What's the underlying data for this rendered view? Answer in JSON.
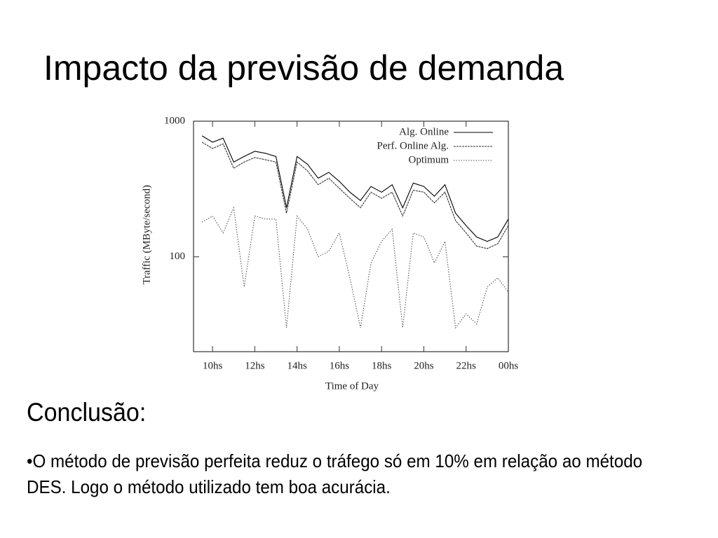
{
  "slide": {
    "title": "Impacto da previsão de demanda",
    "heading": "Conclusão:",
    "text": "•O método de previsão perfeita reduz o tráfego só em 10% em relação ao método DES. Logo o método utilizado tem boa acurácia."
  },
  "chart_data": {
    "type": "line",
    "xlabel": "Time of Day",
    "ylabel": "Traffic (MByte/second)",
    "x": [
      9.5,
      10,
      10.5,
      11,
      11.5,
      12,
      12.5,
      13,
      13.5,
      14,
      14.5,
      15,
      15.5,
      16,
      16.5,
      17,
      17.5,
      18,
      18.5,
      19,
      19.5,
      20,
      20.5,
      21,
      21.5,
      22,
      22.5,
      23,
      23.5,
      24
    ],
    "series": [
      {
        "name": "Alg. Online",
        "color": "#000000",
        "values": [
          780,
          700,
          750,
          500,
          550,
          600,
          580,
          550,
          230,
          550,
          480,
          380,
          420,
          360,
          300,
          260,
          330,
          300,
          340,
          230,
          350,
          330,
          280,
          340,
          210,
          170,
          140,
          130,
          140,
          190
        ]
      },
      {
        "name": "Perf. Online Alg.",
        "color": "#333333",
        "values": [
          700,
          630,
          680,
          450,
          500,
          540,
          520,
          500,
          210,
          500,
          430,
          340,
          380,
          320,
          270,
          230,
          300,
          270,
          300,
          200,
          310,
          300,
          250,
          300,
          185,
          150,
          120,
          115,
          125,
          170
        ]
      },
      {
        "name": "Optimum",
        "color": "#555555",
        "values": [
          180,
          200,
          150,
          230,
          60,
          200,
          190,
          190,
          30,
          200,
          160,
          100,
          110,
          150,
          70,
          30,
          90,
          130,
          160,
          30,
          150,
          140,
          90,
          130,
          30,
          38,
          32,
          60,
          70,
          55
        ]
      }
    ],
    "xlim": [
      9.1,
      24
    ],
    "xticks": [
      {
        "value": 10,
        "label": "10hs"
      },
      {
        "value": 12,
        "label": "12hs"
      },
      {
        "value": 14,
        "label": "14hs"
      },
      {
        "value": 16,
        "label": "16hs"
      },
      {
        "value": 18,
        "label": "18hs"
      },
      {
        "value": 20,
        "label": "20hs"
      },
      {
        "value": 22,
        "label": "22hs"
      },
      {
        "value": 24,
        "label": "00hs"
      }
    ],
    "ylim": [
      20,
      1000
    ],
    "yticks": [
      100,
      1000
    ],
    "log_y": true,
    "legend": "upper right"
  }
}
